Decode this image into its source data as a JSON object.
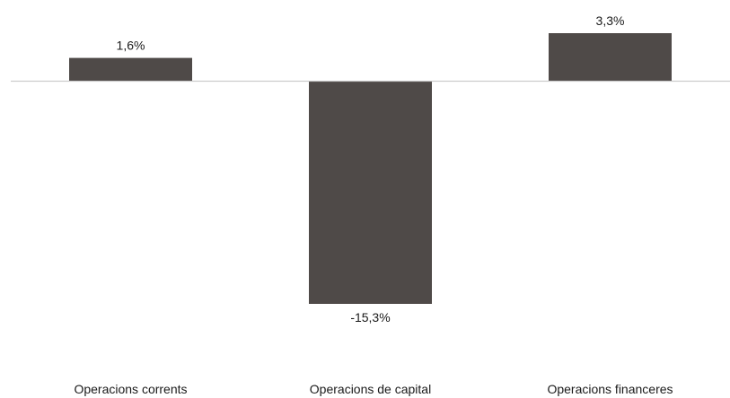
{
  "chart_data": {
    "type": "bar",
    "title": "",
    "xlabel": "",
    "ylabel": "",
    "categories": [
      "Operacions corrents",
      "Operacions de capital",
      "Operacions financeres"
    ],
    "values": [
      1.6,
      -15.3,
      3.3
    ],
    "data_labels": [
      "1,6%",
      "-15,3%",
      "3,3%"
    ],
    "ylim": [
      -15.3,
      3.3
    ],
    "grid": false,
    "legend": "none",
    "colors": {
      "bar": "#4f4a48",
      "zero_line": "#c8c8c8",
      "text": "#1a1a1a"
    }
  }
}
